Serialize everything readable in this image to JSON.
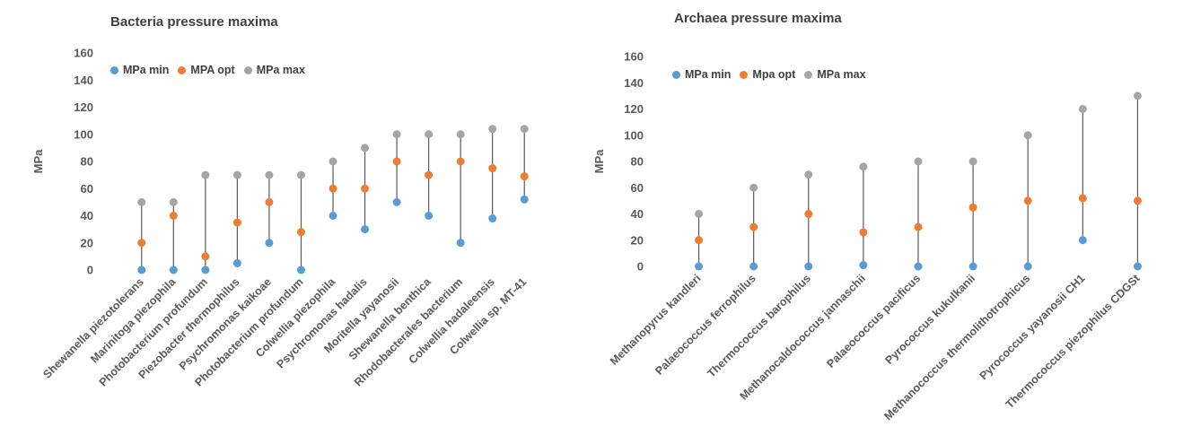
{
  "colors": {
    "min": "#5b9bd5",
    "opt": "#ed7d31",
    "max": "#a5a5a5",
    "stem": "#595959",
    "text": "#595959"
  },
  "chart_data": [
    {
      "type": "scatter",
      "title": "Bacteria pressure maxima",
      "ylabel": "MPa",
      "ylim": [
        0,
        160
      ],
      "yticks": [
        "0",
        "20",
        "40",
        "60",
        "80",
        "100",
        "120",
        "140",
        "160"
      ],
      "legend": [
        "MPa min",
        "MPA opt",
        "MPa max"
      ],
      "categories": [
        "Shewanella piezotolerans",
        "Marinitoga piezophila",
        "Photobacterium profundum",
        "Piezobacter thermophilus",
        "Psychromonas kaikoae",
        "Photobacterium profundum",
        "Colwellia piezophila",
        "Psychromonas hadalis",
        "Moritella yayanosii",
        "Shewanella benthica",
        "Rhodobacterales bacterium",
        "Colwellia hadaleensis",
        "Colwellia sp. MT-41"
      ],
      "min": [
        0,
        0,
        0,
        5,
        20,
        0,
        40,
        30,
        50,
        40,
        20,
        38,
        52
      ],
      "opt": [
        20,
        40,
        10,
        35,
        50,
        28,
        60,
        60,
        80,
        70,
        80,
        75,
        69
      ],
      "max": [
        50,
        50,
        70,
        70,
        70,
        70,
        80,
        90,
        100,
        100,
        100,
        104,
        104
      ]
    },
    {
      "type": "scatter",
      "title": "Archaea pressure maxima",
      "ylabel": "MPa",
      "ylim": [
        0,
        160
      ],
      "yticks": [
        "0",
        "20",
        "40",
        "60",
        "80",
        "100",
        "120",
        "140",
        "160"
      ],
      "legend": [
        "MPa min",
        "Mpa opt",
        "MPa max"
      ],
      "categories": [
        "Methanopyrus kandleri",
        "Palaeococcus ferrophilus",
        "Thermococcus barophilus",
        "Methanocaldococcus jannaschii",
        "Palaeococcus pacificus",
        "Pyrococcus kukulkanii",
        "Methanococcus thermolithotrophicus",
        "Pyrococcus yayanosii CH1",
        "Thermococcus piezophilus CDGSt"
      ],
      "min": [
        0,
        0,
        0,
        1,
        0,
        0,
        0,
        20,
        0
      ],
      "opt": [
        20,
        30,
        40,
        26,
        30,
        45,
        50,
        52,
        50
      ],
      "max": [
        40,
        60,
        70,
        76,
        80,
        80,
        100,
        120,
        130
      ]
    }
  ]
}
